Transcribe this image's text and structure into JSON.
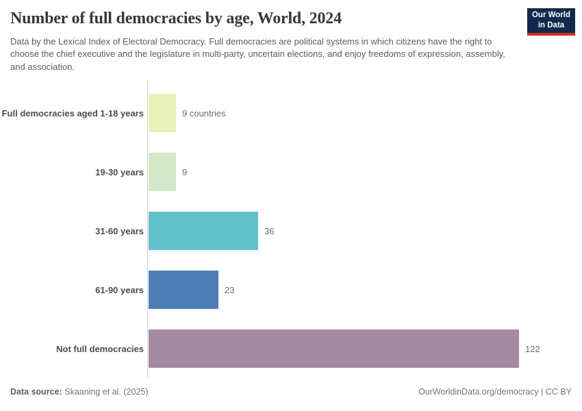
{
  "header": {
    "title": "Number of full democracies by age, World, 2024",
    "subtitle": "Data by the Lexical Index of Electoral Democracy. Full democracies are political systems in which citizens have the right to choose the chief executive and the legislature in multi-party, uncertain elections, and enjoy freedoms of expression, assembly, and association."
  },
  "logo": {
    "line1": "Our World",
    "line2": "in Data",
    "background_color": "#12294e",
    "accent_color": "#cf2d29"
  },
  "chart_data": {
    "type": "bar",
    "orientation": "horizontal",
    "title": "Number of full democracies by age, World, 2024",
    "categories": [
      "Full democracies aged 1-18 years",
      "19-30 years",
      "31-60 years",
      "61-90 years",
      "Not full democracies"
    ],
    "values": [
      9,
      9,
      36,
      23,
      122
    ],
    "value_labels": [
      "9 countries",
      "9",
      "36",
      "23",
      "122"
    ],
    "bar_colors": [
      "#e8f2b4",
      "#d2e9c8",
      "#60c1c9",
      "#4d7eb5",
      "#a689a2"
    ],
    "xlim": [
      0,
      122
    ],
    "grid": false,
    "legend": false,
    "value_axis_ticks_visible": false
  },
  "footer": {
    "datasource_label": "Data source:",
    "datasource_text": " Skaaning et al. (2025)",
    "right_text": "OurWorldinData.org/democracy | CC BY"
  }
}
